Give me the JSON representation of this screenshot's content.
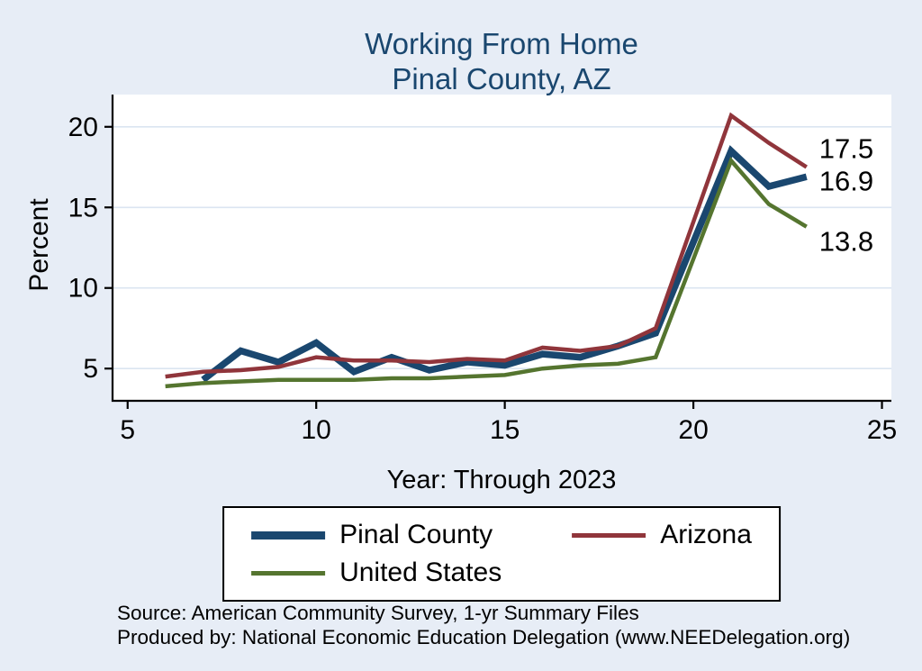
{
  "title": {
    "line1": "Working From Home",
    "line2": "Pinal County, AZ"
  },
  "axes": {
    "ylabel": "Percent",
    "xlabel": "Year: Through 2023"
  },
  "source": {
    "line1": "Source: American Community Survey, 1-yr Summary Files",
    "line2": "Produced by: National Economic Education Delegation (www.NEEDelegation.org)"
  },
  "legend": {
    "items": [
      {
        "label": "Pinal County",
        "color": "#1a476f",
        "thickness": 9
      },
      {
        "label": "Arizona",
        "color": "#90353b",
        "thickness": 5
      },
      {
        "label": "United States",
        "color": "#55752f",
        "thickness": 5
      }
    ]
  },
  "colors": {
    "background": "#e7edf6",
    "plot_background": "#ffffff",
    "gridline": "#dbe5f1",
    "axis": "#000000",
    "title": "#1a476f",
    "text": "#000000"
  },
  "chart_data": {
    "type": "line",
    "title": "Working From Home — Pinal County, AZ",
    "xlabel": "Year: Through 2023",
    "ylabel": "Percent",
    "x": [
      6,
      7,
      8,
      9,
      10,
      11,
      12,
      13,
      14,
      15,
      16,
      17,
      18,
      19,
      21,
      22,
      23
    ],
    "series": [
      {
        "name": "Pinal County",
        "color": "#1a476f",
        "line_width": 7.5,
        "values": [
          null,
          4.3,
          6.1,
          5.4,
          6.6,
          4.8,
          5.7,
          4.9,
          5.4,
          5.2,
          5.9,
          5.7,
          6.4,
          7.2,
          18.5,
          16.3,
          16.9
        ]
      },
      {
        "name": "Arizona",
        "color": "#90353b",
        "line_width": 4.5,
        "values": [
          4.5,
          4.8,
          4.9,
          5.1,
          5.7,
          5.5,
          5.5,
          5.4,
          5.6,
          5.5,
          6.3,
          6.1,
          6.4,
          7.5,
          20.7,
          19.0,
          17.5
        ]
      },
      {
        "name": "United States",
        "color": "#55752f",
        "line_width": 4.5,
        "values": [
          3.9,
          4.1,
          4.2,
          4.3,
          4.3,
          4.3,
          4.4,
          4.4,
          4.5,
          4.6,
          5.0,
          5.2,
          5.3,
          5.7,
          17.9,
          15.2,
          13.8
        ]
      }
    ],
    "xlim": [
      4.6,
      25.25
    ],
    "ylim": [
      3,
      22
    ],
    "xticks": [
      5,
      10,
      15,
      20,
      25
    ],
    "yticks": [
      5,
      10,
      15,
      20
    ],
    "grid": "horizontal",
    "legend_position": "bottom",
    "end_labels": [
      {
        "text": "17.5",
        "at": 17.5,
        "dy": -10
      },
      {
        "text": "16.9",
        "at": 16.9,
        "dy": 15
      },
      {
        "text": "13.8",
        "at": 13.8,
        "dy": 27
      }
    ]
  }
}
